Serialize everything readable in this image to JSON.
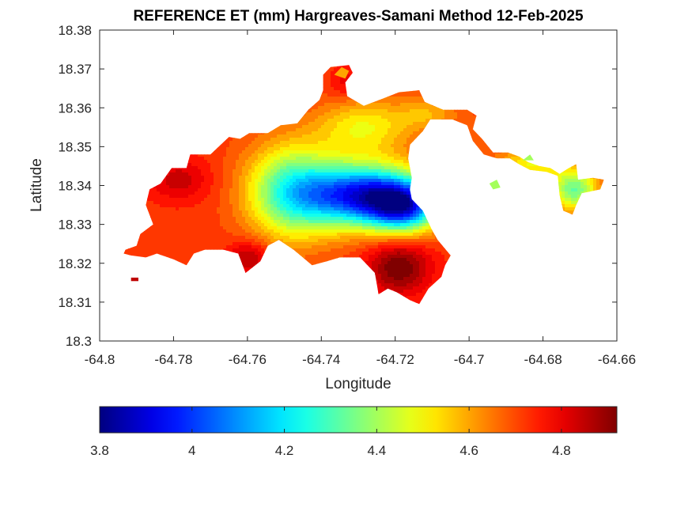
{
  "chart_data": {
    "type": "heatmap",
    "title": "REFERENCE ET (mm) Hargreaves-Samani Method  12-Feb-2025",
    "xlabel": "Longitude",
    "ylabel": "Latitude",
    "xlim": [
      -64.8,
      -64.66
    ],
    "ylim": [
      18.3,
      18.38
    ],
    "xticks": [
      -64.8,
      -64.78,
      -64.76,
      -64.74,
      -64.72,
      -64.7,
      -64.68,
      -64.66
    ],
    "xtick_labels": [
      "-64.8",
      "-64.78",
      "-64.76",
      "-64.74",
      "-64.72",
      "-64.7",
      "-64.68",
      "-64.66"
    ],
    "yticks": [
      18.3,
      18.31,
      18.32,
      18.33,
      18.34,
      18.35,
      18.36,
      18.37,
      18.38
    ],
    "ytick_labels": [
      "18.3",
      "18.31",
      "18.32",
      "18.33",
      "18.34",
      "18.35",
      "18.36",
      "18.37",
      "18.38"
    ],
    "colorbar": {
      "colormap": "jet",
      "range": [
        3.8,
        4.92
      ],
      "ticks": [
        3.8,
        4,
        4.2,
        4.4,
        4.6,
        4.8
      ],
      "tick_labels": [
        "3.8",
        "4",
        "4.2",
        "4.4",
        "4.6",
        "4.8"
      ],
      "location": "south"
    },
    "grid": false,
    "island_outline": [
      [
        -64.793,
        18.3235
      ],
      [
        -64.79,
        18.3245
      ],
      [
        -64.789,
        18.3275
      ],
      [
        -64.7855,
        18.33
      ],
      [
        -64.7875,
        18.335
      ],
      [
        -64.7865,
        18.339
      ],
      [
        -64.7835,
        18.3405
      ],
      [
        -64.7805,
        18.3445
      ],
      [
        -64.7765,
        18.3445
      ],
      [
        -64.7755,
        18.348
      ],
      [
        -64.77,
        18.348
      ],
      [
        -64.765,
        18.3525
      ],
      [
        -64.762,
        18.352
      ],
      [
        -64.7595,
        18.3535
      ],
      [
        -64.7545,
        18.3535
      ],
      [
        -64.751,
        18.3555
      ],
      [
        -64.7465,
        18.356
      ],
      [
        -64.7435,
        18.3595
      ],
      [
        -64.7405,
        18.362
      ],
      [
        -64.7395,
        18.3645
      ],
      [
        -64.7395,
        18.3685
      ],
      [
        -64.7375,
        18.3705
      ],
      [
        -64.7325,
        18.371
      ],
      [
        -64.7315,
        18.369
      ],
      [
        -64.7335,
        18.3665
      ],
      [
        -64.733,
        18.363
      ],
      [
        -64.7285,
        18.3605
      ],
      [
        -64.723,
        18.3625
      ],
      [
        -64.719,
        18.364
      ],
      [
        -64.7135,
        18.3645
      ],
      [
        -64.712,
        18.3615
      ],
      [
        -64.707,
        18.3595
      ],
      [
        -64.7005,
        18.3595
      ],
      [
        -64.698,
        18.358
      ],
      [
        -64.699,
        18.3545
      ],
      [
        -64.6965,
        18.352
      ],
      [
        -64.6935,
        18.3485
      ],
      [
        -64.6905,
        18.3485
      ],
      [
        -64.6895,
        18.3485
      ],
      [
        -64.6865,
        18.3475
      ],
      [
        -64.684,
        18.346
      ],
      [
        -64.681,
        18.345
      ],
      [
        -64.678,
        18.3445
      ],
      [
        -64.6755,
        18.343
      ],
      [
        -64.673,
        18.3445
      ],
      [
        -64.671,
        18.3455
      ],
      [
        -64.6705,
        18.3415
      ],
      [
        -64.6665,
        18.342
      ],
      [
        -64.6635,
        18.3415
      ],
      [
        -64.6645,
        18.339
      ],
      [
        -64.6695,
        18.338
      ],
      [
        -64.671,
        18.335
      ],
      [
        -64.672,
        18.3325
      ],
      [
        -64.6745,
        18.3335
      ],
      [
        -64.6755,
        18.3375
      ],
      [
        -64.676,
        18.3425
      ],
      [
        -64.679,
        18.3435
      ],
      [
        -64.6835,
        18.344
      ],
      [
        -64.6865,
        18.3455
      ],
      [
        -64.689,
        18.347
      ],
      [
        -64.6925,
        18.347
      ],
      [
        -64.696,
        18.348
      ],
      [
        -64.699,
        18.3515
      ],
      [
        -64.7005,
        18.3555
      ],
      [
        -64.7045,
        18.357
      ],
      [
        -64.7105,
        18.357
      ],
      [
        -64.7125,
        18.354
      ],
      [
        -64.716,
        18.3505
      ],
      [
        -64.7165,
        18.347
      ],
      [
        -64.7155,
        18.342
      ],
      [
        -64.716,
        18.339
      ],
      [
        -64.7155,
        18.3365
      ],
      [
        -64.7125,
        18.3335
      ],
      [
        -64.71,
        18.3285
      ],
      [
        -64.7085,
        18.326
      ],
      [
        -64.705,
        18.322
      ],
      [
        -64.7065,
        18.3195
      ],
      [
        -64.7075,
        18.3165
      ],
      [
        -64.711,
        18.3135
      ],
      [
        -64.7135,
        18.3095
      ],
      [
        -64.716,
        18.3105
      ],
      [
        -64.7195,
        18.3125
      ],
      [
        -64.722,
        18.3135
      ],
      [
        -64.7245,
        18.312
      ],
      [
        -64.7255,
        18.3175
      ],
      [
        -64.7295,
        18.3215
      ],
      [
        -64.735,
        18.3215
      ],
      [
        -64.7385,
        18.3205
      ],
      [
        -64.7425,
        18.3195
      ],
      [
        -64.7475,
        18.3235
      ],
      [
        -64.7515,
        18.326
      ],
      [
        -64.7545,
        18.3245
      ],
      [
        -64.7565,
        18.3205
      ],
      [
        -64.7605,
        18.3175
      ],
      [
        -64.7625,
        18.3225
      ],
      [
        -64.7665,
        18.3235
      ],
      [
        -64.7715,
        18.3235
      ],
      [
        -64.7745,
        18.3225
      ],
      [
        -64.7765,
        18.3195
      ],
      [
        -64.78,
        18.321
      ],
      [
        -64.7845,
        18.3225
      ],
      [
        -64.7875,
        18.3215
      ],
      [
        -64.7915,
        18.322
      ],
      [
        -64.7935,
        18.3225
      ]
    ],
    "islets": [
      {
        "polygon": [
          [
            -64.7365,
            18.3685
          ],
          [
            -64.7345,
            18.3705
          ],
          [
            -64.7325,
            18.3695
          ],
          [
            -64.7335,
            18.3675
          ]
        ],
        "value": 4.6
      },
      {
        "polygon": [
          [
            -64.7915,
            18.3163
          ],
          [
            -64.7895,
            18.3163
          ],
          [
            -64.7895,
            18.3154
          ],
          [
            -64.7915,
            18.3154
          ]
        ],
        "value": 4.85
      },
      {
        "polygon": [
          [
            -64.6945,
            18.3405
          ],
          [
            -64.6925,
            18.3415
          ],
          [
            -64.6915,
            18.3395
          ],
          [
            -64.6935,
            18.339
          ]
        ],
        "value": 4.4
      },
      {
        "polygon": [
          [
            -64.6855,
            18.3465
          ],
          [
            -64.6835,
            18.348
          ],
          [
            -64.6825,
            18.3465
          ]
        ],
        "value": 4.4
      }
    ],
    "field_components": [
      {
        "lon": -64.7285,
        "lat": 18.3375,
        "amp": -0.75,
        "sx": 0.011,
        "sy": 0.0055
      },
      {
        "lon": -64.7175,
        "lat": 18.3345,
        "amp": -0.55,
        "sx": 0.0065,
        "sy": 0.0045
      },
      {
        "lon": -64.748,
        "lat": 18.3385,
        "amp": -0.42,
        "sx": 0.0085,
        "sy": 0.0085
      },
      {
        "lon": -64.7285,
        "lat": 18.355,
        "amp": -0.22,
        "sx": 0.009,
        "sy": 0.005
      },
      {
        "lon": -64.7785,
        "lat": 18.3415,
        "amp": 0.12,
        "sx": 0.006,
        "sy": 0.004
      },
      {
        "lon": -64.7595,
        "lat": 18.3215,
        "amp": 0.16,
        "sx": 0.004,
        "sy": 0.003
      },
      {
        "lon": -64.719,
        "lat": 18.319,
        "amp": 0.22,
        "sx": 0.006,
        "sy": 0.005
      },
      {
        "lon": -64.711,
        "lat": 18.3585,
        "amp": -0.12,
        "sx": 0.006,
        "sy": 0.003
      },
      {
        "lon": -64.6975,
        "lat": 18.352,
        "amp": -0.05,
        "sx": 0.004,
        "sy": 0.003
      },
      {
        "lon": -64.6835,
        "lat": 18.3455,
        "amp": -0.22,
        "sx": 0.006,
        "sy": 0.003
      },
      {
        "lon": -64.6715,
        "lat": 18.339,
        "amp": -0.38,
        "sx": 0.0045,
        "sy": 0.004
      },
      {
        "lon": -64.7335,
        "lat": 18.3665,
        "amp": 0.08,
        "sx": 0.003,
        "sy": 0.003
      }
    ],
    "field_base": 4.72
  }
}
